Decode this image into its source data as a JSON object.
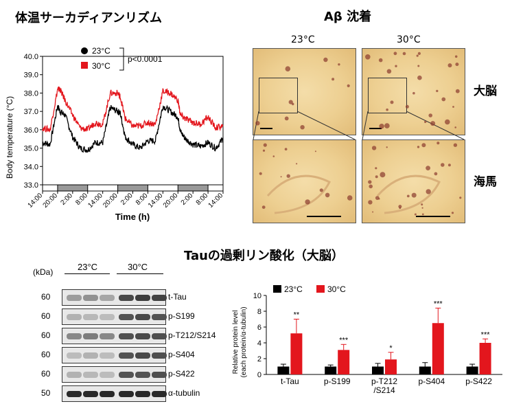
{
  "titles": {
    "temp_rhythm": "体温サーカディアンリズム",
    "abeta": "Aβ 沈着",
    "tau": "Tauの過剰リン酸化（大脳）"
  },
  "micro": {
    "col1": "23°C",
    "col2": "30°C",
    "row1": "大脳",
    "row2": "海馬"
  },
  "blot": {
    "kda_label": "(kDa)",
    "group1": "23°C",
    "group2": "30°C",
    "rows": [
      {
        "mw": "60",
        "label": "t-Tau"
      },
      {
        "mw": "60",
        "label": "p-S199"
      },
      {
        "mw": "60",
        "label": "p-T212/S214"
      },
      {
        "mw": "60",
        "label": "p-S404"
      },
      {
        "mw": "60",
        "label": "p-S422"
      },
      {
        "mw": "50",
        "label": "α-tubulin"
      }
    ]
  },
  "colors": {
    "c23": "#000000",
    "c30": "#e3161d"
  },
  "chart_data": [
    {
      "type": "line",
      "ylabel": "Body temperature (°C)",
      "xlabel": "Time (h)",
      "ylim": [
        33.0,
        40.0
      ],
      "yticks": [
        "33.0",
        "34.0",
        "35.0",
        "36.0",
        "37.0",
        "38.0",
        "39.0",
        "40.0"
      ],
      "xticks": [
        "14:00",
        "20:00",
        "2:00",
        "8:00",
        "14:00",
        "20:00",
        "2:00",
        "8:00",
        "14:00",
        "20:00",
        "2:00",
        "8:00",
        "14:00"
      ],
      "legend": {
        "s1": "23°C",
        "s2": "30°C",
        "stat": "p<0.0001"
      },
      "x_hours": [
        0,
        3,
        6,
        7,
        9,
        12,
        15,
        18,
        21,
        24,
        27,
        30,
        31,
        33,
        36,
        39,
        42,
        45,
        48,
        51,
        54,
        55,
        57,
        60,
        63,
        66,
        69,
        72
      ],
      "series": [
        {
          "name": "23°C",
          "values": [
            35.3,
            35.2,
            37.3,
            37.0,
            36.8,
            35.6,
            35.0,
            34.9,
            35.3,
            35.3,
            37.2,
            37.0,
            36.9,
            35.6,
            35.2,
            35.0,
            35.4,
            35.4,
            37.3,
            37.0,
            36.7,
            35.9,
            35.5,
            35.2,
            35.1,
            35.3,
            35.0,
            35.5
          ]
        },
        {
          "name": "30°C",
          "values": [
            36.1,
            36.0,
            38.2,
            38.2,
            37.6,
            36.8,
            36.1,
            36.0,
            36.4,
            36.3,
            38.0,
            38.0,
            37.8,
            36.6,
            36.2,
            36.2,
            36.4,
            36.3,
            38.1,
            38.0,
            37.6,
            36.8,
            36.6,
            36.4,
            36.3,
            36.7,
            36.1,
            36.2
          ]
        }
      ],
      "dark_periods": [
        [
          6,
          18
        ],
        [
          30,
          42
        ],
        [
          54,
          66
        ]
      ]
    },
    {
      "type": "bar",
      "ylabel": "Relative protein level\n(each protein/α-tubulin)",
      "ylim": [
        0,
        10
      ],
      "yticks": [
        "0",
        "2",
        "4",
        "6",
        "8",
        "10"
      ],
      "categories": [
        "t-Tau",
        "p-S199",
        "p-T212\n/S214",
        "p-S404",
        "p-S422"
      ],
      "series": [
        {
          "name": "23°C",
          "values": [
            1.0,
            1.0,
            1.0,
            1.0,
            1.0
          ],
          "errors": [
            0.3,
            0.2,
            0.4,
            0.5,
            0.3
          ]
        },
        {
          "name": "30°C",
          "values": [
            5.2,
            3.1,
            1.9,
            6.5,
            4.0
          ],
          "errors": [
            1.8,
            0.7,
            0.9,
            1.9,
            0.5
          ]
        }
      ],
      "significance": [
        "**",
        "***",
        "*",
        "***",
        "***"
      ]
    }
  ]
}
